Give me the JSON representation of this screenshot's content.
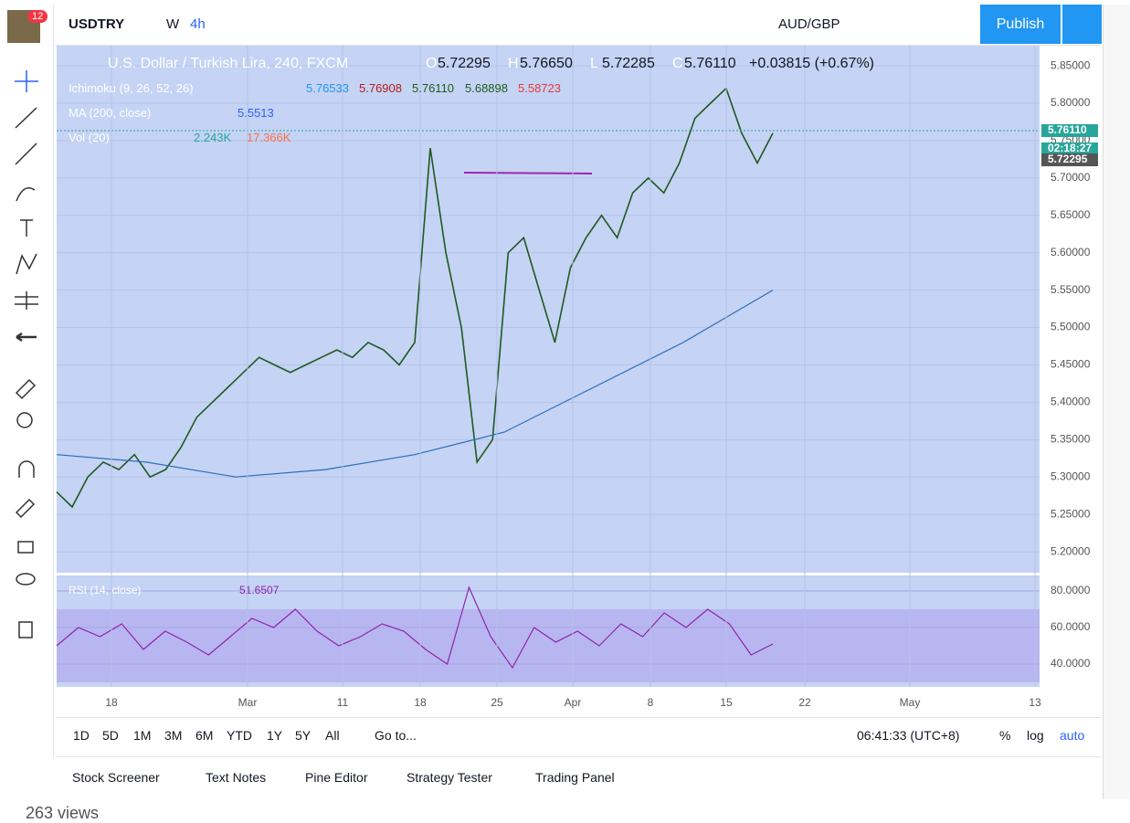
{
  "toolbar": {
    "symbol": "USDTRY",
    "interval_w": "W",
    "interval": "4h",
    "compare": "AUD/GBP",
    "publish": "Publish",
    "notifications": "12"
  },
  "legend": {
    "title": "U.S. Dollar / Turkish Lira, 240, FXCM",
    "ohlc": [
      {
        "label": "O",
        "value": "5.72295"
      },
      {
        "label": "H",
        "value": "5.76650"
      },
      {
        "label": "L",
        "value": "5.72285"
      },
      {
        "label": "C",
        "value": "5.76110"
      }
    ],
    "change": "+0.03815 (+0.67%)"
  },
  "indicators": [
    {
      "name": "Ichimoku (9, 26, 52, 26)",
      "values": [
        "5.76533",
        "5.76908",
        "5.76110",
        "5.68898",
        "5.58723"
      ]
    },
    {
      "name": "MA (200, close)",
      "values": [
        "5.5513"
      ]
    },
    {
      "name": "Vol (20)",
      "values": [
        "2.243K",
        "17.366K"
      ]
    }
  ],
  "chart_data": {
    "type": "line",
    "ylim": [
      5.172,
      5.877
    ],
    "yticks": [
      {
        "value": 5.85,
        "label": "5.85000"
      },
      {
        "value": 5.8,
        "label": "5.80000"
      },
      {
        "value": 5.75,
        "label": "5.75000"
      },
      {
        "value": 5.7,
        "label": "5.70000"
      },
      {
        "value": 5.65,
        "label": "5.65000"
      },
      {
        "value": 5.6,
        "label": "5.60000"
      },
      {
        "value": 5.55,
        "label": "5.55000"
      },
      {
        "value": 5.5,
        "label": "5.50000"
      },
      {
        "value": 5.45,
        "label": "5.45000"
      },
      {
        "value": 5.4,
        "label": "5.40000"
      },
      {
        "value": 5.35,
        "label": "5.35000"
      },
      {
        "value": 5.3,
        "label": "5.30000"
      },
      {
        "value": 5.25,
        "label": "5.25000"
      },
      {
        "value": 5.2,
        "label": "5.20000"
      }
    ],
    "series": [
      {
        "name": "USDTRY",
        "color": "#1e5a20",
        "values": [
          5.28,
          5.26,
          5.3,
          5.32,
          5.31,
          5.33,
          5.3,
          5.31,
          5.34,
          5.38,
          5.4,
          5.42,
          5.44,
          5.46,
          5.45,
          5.44,
          5.45,
          5.46,
          5.47,
          5.46,
          5.48,
          5.47,
          5.45,
          5.48,
          5.74,
          5.6,
          5.5,
          5.32,
          5.35,
          5.6,
          5.62,
          5.55,
          5.48,
          5.58,
          5.62,
          5.65,
          5.62,
          5.68,
          5.7,
          5.68,
          5.72,
          5.78,
          5.8,
          5.82,
          5.76,
          5.72,
          5.76
        ]
      },
      {
        "name": "MA (200, close)",
        "color": "#2a6fb5",
        "values": [
          5.33,
          5.32,
          5.3,
          5.31,
          5.33,
          5.36,
          5.42,
          5.48,
          5.55
        ]
      }
    ],
    "price_labels": [
      "5.76110",
      "02:18:27",
      "5.72295"
    ]
  },
  "rsi": {
    "name": "RSI (14, close)",
    "value": "51.6507",
    "ylim": [
      27.5,
      87.5
    ],
    "yticks": [
      {
        "value": 80,
        "label": "80.0000"
      },
      {
        "value": 60,
        "label": "60.0000"
      },
      {
        "value": 40,
        "label": "40.0000"
      }
    ],
    "values": [
      50,
      60,
      55,
      62,
      48,
      58,
      52,
      45,
      55,
      65,
      60,
      70,
      58,
      50,
      55,
      62,
      58,
      48,
      40,
      82,
      55,
      38,
      60,
      52,
      58,
      50,
      62,
      55,
      68,
      60,
      70,
      62,
      45,
      51
    ]
  },
  "time_axis": [
    "18",
    "Mar",
    "11",
    "18",
    "25",
    "Apr",
    "8",
    "15",
    "22",
    "May",
    "13"
  ],
  "bottom_bar": {
    "ranges": [
      "1D",
      "5D",
      "1M",
      "3M",
      "6M",
      "YTD",
      "1Y",
      "5Y",
      "All"
    ],
    "goto": "Go to...",
    "clock": "06:41:33 (UTC+8)",
    "options": [
      "%",
      "log",
      "auto"
    ]
  },
  "tabs": [
    "Stock Screener",
    "Text Notes",
    "Pine Editor",
    "Strategy Tester",
    "Trading Panel"
  ],
  "footer": "263 views"
}
